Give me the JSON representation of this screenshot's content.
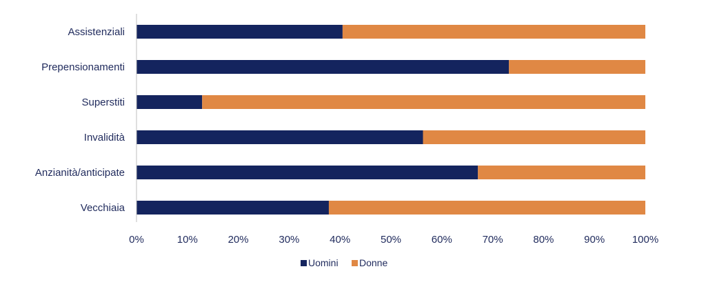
{
  "chart_data": {
    "type": "bar",
    "orientation": "horizontal",
    "stacked": "percent",
    "categories": [
      "Assistenziali",
      "Prepensionamenti",
      "Superstiti",
      "Invalidità",
      "Anzianità/anticipate",
      "Vecchiaia"
    ],
    "series": [
      {
        "name": "Uomini",
        "color": "#14245e",
        "values": [
          40.5,
          73.2,
          12.9,
          56.3,
          67.1,
          37.8
        ]
      },
      {
        "name": "Donne",
        "color": "#e08844",
        "values": [
          59.5,
          26.8,
          87.1,
          43.7,
          32.9,
          62.2
        ]
      }
    ],
    "xlim": [
      0,
      100
    ],
    "x_ticks": [
      "0%",
      "10%",
      "20%",
      "30%",
      "40%",
      "50%",
      "60%",
      "70%",
      "80%",
      "90%",
      "100%"
    ],
    "legend": "bottom",
    "grid": false
  }
}
